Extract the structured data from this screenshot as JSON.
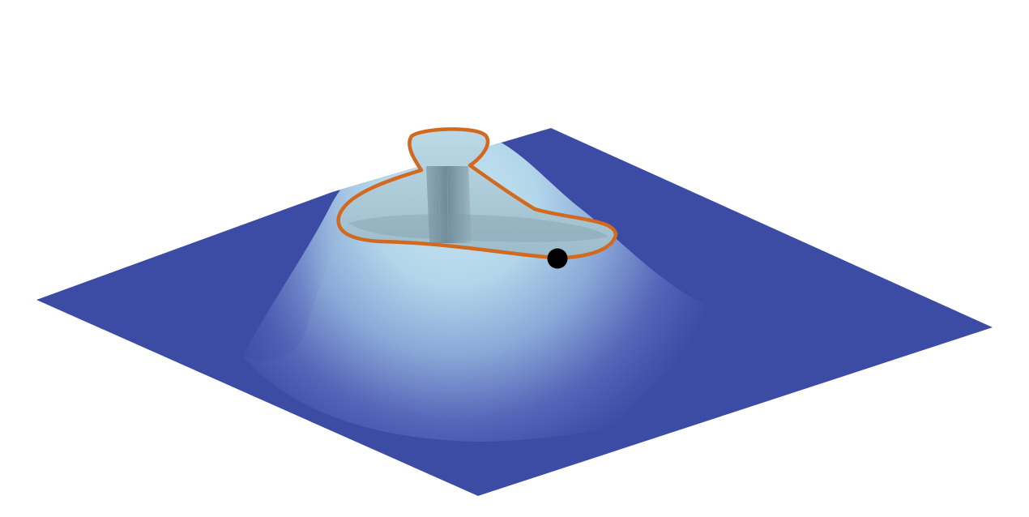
{
  "figure": {
    "subject": "surface-with-level-set-contour",
    "colors": {
      "background": "#ffffff",
      "plane": "#3c4ba4",
      "surface_peak": "#b7dcec",
      "surface_mid": "#8fb4dc",
      "surface_base": "#4453ad",
      "well_wall_dark": "#6f8a98",
      "well_wall_light": "#a9c3cf",
      "contour": "#d2691e",
      "marker": "#000000"
    },
    "elements": {
      "plane": "flat-base-plane",
      "bump": "gaussian-bump-surface",
      "well": "cut-out-level-set-well",
      "contour": "level-set-boundary-curve",
      "marker": "point-on-contour"
    }
  }
}
